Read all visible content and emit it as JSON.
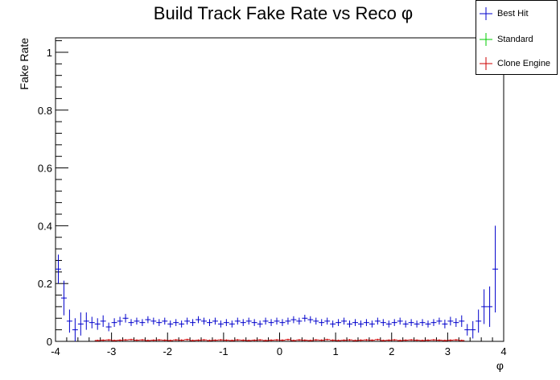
{
  "chart_data": {
    "type": "scatter",
    "title": "Build Track Fake Rate vs Reco φ",
    "xlabel": "φ",
    "ylabel": "Fake Rate",
    "xlim": [
      -4,
      4
    ],
    "ylim": [
      0,
      1.05
    ],
    "x_ticks": [
      "-4",
      "-3",
      "-2",
      "-1",
      "0",
      "1",
      "2",
      "3",
      "4"
    ],
    "y_ticks": [
      "0",
      "0.2",
      "0.4",
      "0.6",
      "0.8",
      "1"
    ],
    "legend_position": "top-right",
    "series": [
      {
        "name": "Best Hit",
        "color": "#0000cc",
        "x": [
          -3.95,
          -3.85,
          -3.75,
          -3.65,
          -3.55,
          -3.45,
          -3.35,
          -3.25,
          -3.15,
          -3.05,
          -2.95,
          -2.85,
          -2.75,
          -2.65,
          -2.55,
          -2.45,
          -2.35,
          -2.25,
          -2.15,
          -2.05,
          -1.95,
          -1.85,
          -1.75,
          -1.65,
          -1.55,
          -1.45,
          -1.35,
          -1.25,
          -1.15,
          -1.05,
          -0.95,
          -0.85,
          -0.75,
          -0.65,
          -0.55,
          -0.45,
          -0.35,
          -0.25,
          -0.15,
          -0.05,
          0.05,
          0.15,
          0.25,
          0.35,
          0.45,
          0.55,
          0.65,
          0.75,
          0.85,
          0.95,
          1.05,
          1.15,
          1.25,
          1.35,
          1.45,
          1.55,
          1.65,
          1.75,
          1.85,
          1.95,
          2.05,
          2.15,
          2.25,
          2.35,
          2.45,
          2.55,
          2.65,
          2.75,
          2.85,
          2.95,
          3.05,
          3.15,
          3.25,
          3.35,
          3.45,
          3.55,
          3.65,
          3.75,
          3.85
        ],
        "y": [
          0.25,
          0.15,
          0.07,
          0.04,
          0.06,
          0.07,
          0.065,
          0.06,
          0.07,
          0.05,
          0.065,
          0.07,
          0.08,
          0.065,
          0.07,
          0.065,
          0.075,
          0.07,
          0.065,
          0.07,
          0.06,
          0.065,
          0.06,
          0.07,
          0.065,
          0.075,
          0.07,
          0.065,
          0.07,
          0.06,
          0.065,
          0.06,
          0.07,
          0.065,
          0.07,
          0.065,
          0.06,
          0.07,
          0.065,
          0.07,
          0.065,
          0.07,
          0.075,
          0.07,
          0.08,
          0.075,
          0.07,
          0.065,
          0.07,
          0.06,
          0.065,
          0.07,
          0.06,
          0.065,
          0.06,
          0.065,
          0.06,
          0.07,
          0.065,
          0.06,
          0.065,
          0.07,
          0.06,
          0.065,
          0.06,
          0.065,
          0.06,
          0.065,
          0.07,
          0.06,
          0.07,
          0.065,
          0.07,
          0.04,
          0.04,
          0.07,
          0.12,
          0.12,
          0.25
        ],
        "err": [
          0.05,
          0.06,
          0.04,
          0.04,
          0.04,
          0.03,
          0.02,
          0.02,
          0.02,
          0.015,
          0.015,
          0.015,
          0.015,
          0.012,
          0.012,
          0.012,
          0.012,
          0.012,
          0.012,
          0.012,
          0.012,
          0.012,
          0.012,
          0.012,
          0.012,
          0.012,
          0.012,
          0.012,
          0.012,
          0.012,
          0.012,
          0.012,
          0.012,
          0.012,
          0.012,
          0.012,
          0.012,
          0.012,
          0.012,
          0.012,
          0.012,
          0.012,
          0.012,
          0.012,
          0.012,
          0.012,
          0.012,
          0.012,
          0.012,
          0.012,
          0.012,
          0.012,
          0.012,
          0.012,
          0.012,
          0.012,
          0.012,
          0.012,
          0.012,
          0.012,
          0.012,
          0.012,
          0.012,
          0.012,
          0.012,
          0.012,
          0.012,
          0.012,
          0.012,
          0.015,
          0.015,
          0.015,
          0.02,
          0.02,
          0.03,
          0.04,
          0.06,
          0.07,
          0.15
        ]
      },
      {
        "name": "Standard",
        "color": "#00cc00",
        "x": [],
        "y": [],
        "err": []
      },
      {
        "name": "Clone Engine",
        "color": "#cc0000",
        "x": [
          -3.25,
          -3.15,
          -3.05,
          -2.95,
          -2.85,
          -2.75,
          -2.65,
          -2.55,
          -2.45,
          -2.35,
          -2.25,
          -2.15,
          -2.05,
          -1.95,
          -1.85,
          -1.75,
          -1.65,
          -1.55,
          -1.45,
          -1.35,
          -1.25,
          -1.15,
          -1.05,
          -0.95,
          -0.85,
          -0.75,
          -0.65,
          -0.55,
          -0.45,
          -0.35,
          -0.25,
          -0.15,
          -0.05,
          0.05,
          0.15,
          0.25,
          0.35,
          0.45,
          0.55,
          0.65,
          0.75,
          0.85,
          0.95,
          1.05,
          1.15,
          1.25,
          1.35,
          1.45,
          1.55,
          1.65,
          1.75,
          1.85,
          1.95,
          2.05,
          2.15,
          2.25,
          2.35,
          2.45,
          2.55,
          2.65,
          2.75,
          2.85,
          2.95,
          3.05,
          3.15,
          3.25
        ],
        "y": [
          0.003,
          0.004,
          0.005,
          0.003,
          0.004,
          0.005,
          0.006,
          0.004,
          0.005,
          0.003,
          0.004,
          0.005,
          0.004,
          0.003,
          0.005,
          0.004,
          0.006,
          0.003,
          0.004,
          0.005,
          0.003,
          0.004,
          0.005,
          0.004,
          0.003,
          0.005,
          0.004,
          0.003,
          0.004,
          0.005,
          0.003,
          0.004,
          0.005,
          0.004,
          0.006,
          0.003,
          0.005,
          0.004,
          0.003,
          0.005,
          0.004,
          0.006,
          0.004,
          0.003,
          0.004,
          0.005,
          0.003,
          0.004,
          0.005,
          0.004,
          0.006,
          0.003,
          0.004,
          0.005,
          0.003,
          0.004,
          0.005,
          0.004,
          0.003,
          0.004,
          0.005,
          0.004,
          0.003,
          0.004,
          0.005,
          0.003
        ],
        "err": [
          0.003,
          0.003,
          0.003,
          0.003,
          0.003,
          0.003,
          0.003,
          0.003,
          0.003,
          0.003,
          0.003,
          0.003,
          0.003,
          0.003,
          0.003,
          0.003,
          0.003,
          0.003,
          0.003,
          0.003,
          0.003,
          0.003,
          0.003,
          0.003,
          0.003,
          0.003,
          0.003,
          0.003,
          0.003,
          0.003,
          0.003,
          0.003,
          0.003,
          0.003,
          0.003,
          0.003,
          0.003,
          0.003,
          0.003,
          0.003,
          0.003,
          0.003,
          0.003,
          0.003,
          0.003,
          0.003,
          0.003,
          0.003,
          0.003,
          0.003,
          0.003,
          0.003,
          0.003,
          0.003,
          0.003,
          0.003,
          0.003,
          0.003,
          0.003,
          0.003,
          0.003,
          0.003,
          0.003,
          0.003,
          0.003,
          0.003
        ]
      }
    ]
  }
}
